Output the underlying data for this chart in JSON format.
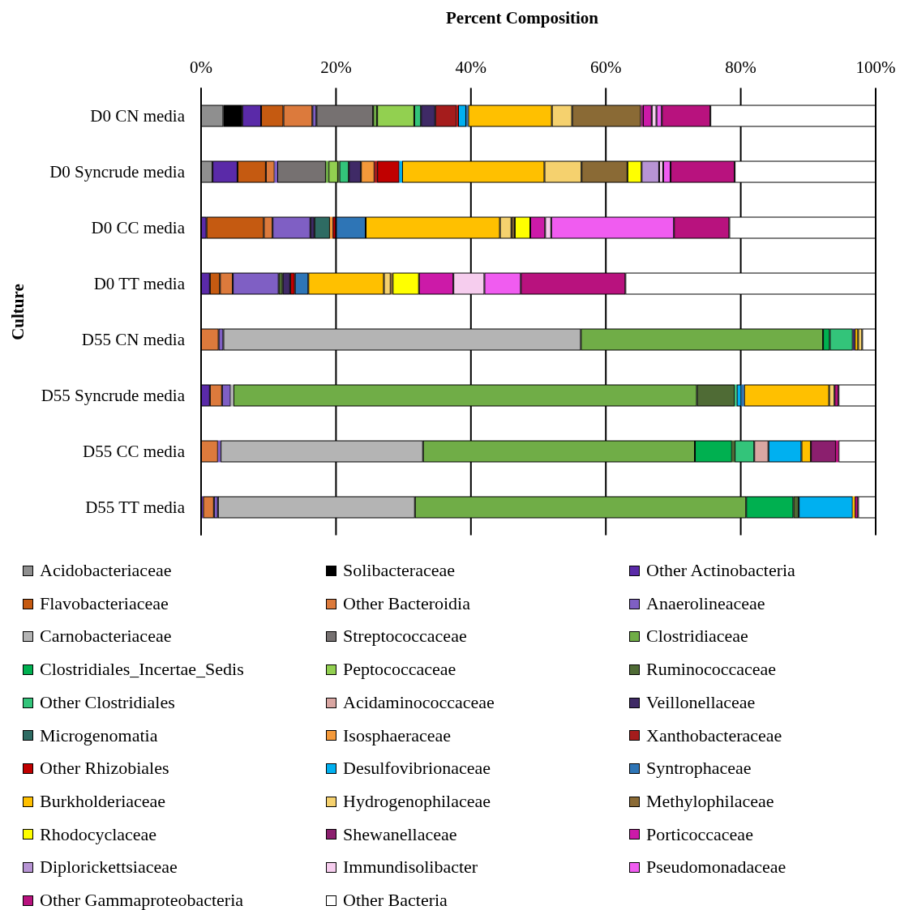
{
  "chart_data": {
    "type": "bar",
    "orientation": "horizontal",
    "stacked": true,
    "xlabel": "Percent Composition",
    "ylabel": "Culture",
    "categories": [
      "D0 CN media",
      "D0 Syncrude media",
      "D0 CC media",
      "D0 TT media",
      "D55 CN media",
      "D55 Syncrude media",
      "D55 CC media",
      "D55 TT media"
    ],
    "xlim": [
      0,
      100
    ],
    "xticks": [
      {
        "value": 0,
        "label": "0%"
      },
      {
        "value": 20,
        "label": "20%"
      },
      {
        "value": 40,
        "label": "40%"
      },
      {
        "value": 60,
        "label": "60%"
      },
      {
        "value": 80,
        "label": "80%"
      },
      {
        "value": 100,
        "label": "100%"
      }
    ],
    "grid": "x",
    "legend": "bottom",
    "series": [
      {
        "name": "Acidobacteriaceae",
        "color": "#8f8f8f",
        "values": [
          3.3,
          1.7,
          0,
          0,
          0,
          0,
          0,
          0
        ]
      },
      {
        "name": "Solibacteraceae",
        "color": "#000000",
        "values": [
          2.8,
          0,
          0,
          0,
          0,
          0,
          0,
          0
        ]
      },
      {
        "name": "Other Actinobacteria",
        "color": "#5a2aa8",
        "values": [
          2.8,
          3.7,
          0.8,
          1.3,
          0,
          1.3,
          0,
          0.3
        ]
      },
      {
        "name": "Flavobacteriaceae",
        "color": "#c55a11",
        "values": [
          3.3,
          4.2,
          8.5,
          1.5,
          0,
          0,
          0,
          0
        ]
      },
      {
        "name": "Other Bacteroidia",
        "color": "#dc7a3c",
        "values": [
          4.3,
          1.3,
          1.3,
          1.9,
          2.6,
          1.8,
          2.5,
          1.6
        ]
      },
      {
        "name": "Anaerolineaceae",
        "color": "#7f5fc4",
        "values": [
          0.6,
          0.4,
          5.6,
          6.8,
          0.7,
          1.3,
          0.4,
          0.6
        ]
      },
      {
        "name": "Carnobacteriaceae",
        "color": "#b4b4b4",
        "values": [
          0,
          0,
          0,
          0,
          53.0,
          0.4,
          30.0,
          29.2
        ]
      },
      {
        "name": "Streptococcaceae",
        "color": "#767171",
        "values": [
          8.4,
          7.2,
          0,
          0,
          0,
          0,
          0,
          0
        ]
      },
      {
        "name": "Clostridiaceae",
        "color": "#70ad47",
        "values": [
          0.6,
          0.4,
          0,
          0,
          35.9,
          68.7,
          40.3,
          49.1
        ]
      },
      {
        "name": "Clostridiales_Incertae_Sedis",
        "color": "#00b050",
        "values": [
          0,
          0,
          0,
          0,
          1.0,
          0,
          5.5,
          7.0
        ]
      },
      {
        "name": "Peptococcaceae",
        "color": "#92d050",
        "values": [
          5.5,
          1.4,
          0,
          0,
          0,
          0,
          0,
          0
        ]
      },
      {
        "name": "Ruminococcaceae",
        "color": "#4f6b35",
        "values": [
          0,
          0.2,
          0,
          0.6,
          0,
          5.6,
          0.4,
          0.8
        ]
      },
      {
        "name": "Other Clostridiales",
        "color": "#33c47a",
        "values": [
          1.0,
          1.4,
          0,
          0,
          3.4,
          0.3,
          2.9,
          0
        ]
      },
      {
        "name": "Acidaminococcaceae",
        "color": "#d9a6a2",
        "values": [
          0,
          0,
          0,
          0,
          0,
          0,
          2.1,
          0
        ]
      },
      {
        "name": "Veillonellaceae",
        "color": "#3f2a66",
        "values": [
          2.1,
          1.8,
          0.6,
          1.1,
          0.3,
          0,
          0,
          0
        ]
      },
      {
        "name": "Microgenomatia",
        "color": "#2e6b63",
        "values": [
          0,
          0,
          2.3,
          0,
          0,
          0,
          0,
          0
        ]
      },
      {
        "name": "Isosphaeraceae",
        "color": "#f4993a",
        "values": [
          0,
          2.0,
          0.4,
          0,
          0,
          0,
          0,
          0
        ]
      },
      {
        "name": "Xanthobacteraceae",
        "color": "#a51c1c",
        "values": [
          3.2,
          0.4,
          0,
          0,
          0,
          0,
          0,
          0
        ]
      },
      {
        "name": "Other Rhizobiales",
        "color": "#c00000",
        "values": [
          0.2,
          3.3,
          0.5,
          0.7,
          0,
          0,
          0,
          0
        ]
      },
      {
        "name": "Desulfovibrionaceae",
        "color": "#00b0f0",
        "values": [
          1.2,
          0.4,
          0,
          0,
          0,
          0.7,
          4.9,
          8.0
        ]
      },
      {
        "name": "Syntrophaceae",
        "color": "#2e75b6",
        "values": [
          0.3,
          0,
          4.4,
          2.0,
          0,
          0.4,
          0,
          0
        ]
      },
      {
        "name": "Burkholderiaceae",
        "color": "#ffc000",
        "values": [
          12.4,
          21.1,
          19.9,
          11.2,
          0.5,
          12.6,
          1.4,
          0.3
        ]
      },
      {
        "name": "Hydrogenophilaceae",
        "color": "#f5d16e",
        "values": [
          3.0,
          5.5,
          1.7,
          1.0,
          0.6,
          0.8,
          0,
          0
        ]
      },
      {
        "name": "Methylophilaceae",
        "color": "#8a6a35",
        "values": [
          10.2,
          6.8,
          0.5,
          0.3,
          0,
          0,
          0,
          0
        ]
      },
      {
        "name": "Rhodocyclaceae",
        "color": "#ffff00",
        "values": [
          0,
          2.1,
          2.3,
          3.9,
          0,
          0,
          0,
          0
        ]
      },
      {
        "name": "Shewanellaceae",
        "color": "#8b1f6e",
        "values": [
          0.3,
          0,
          0,
          0,
          0,
          0,
          3.7,
          0
        ]
      },
      {
        "name": "Porticoccaceae",
        "color": "#cc1aa8",
        "values": [
          1.3,
          0,
          2.2,
          5.1,
          0,
          0,
          0,
          0
        ]
      },
      {
        "name": "Diplorickettsiaceae",
        "color": "#b794d4",
        "values": [
          0,
          2.6,
          0,
          0,
          0,
          0,
          0,
          0
        ]
      },
      {
        "name": "Immundisolibacter",
        "color": "#f6cdee",
        "values": [
          0.7,
          0.6,
          0.9,
          4.6,
          0,
          0,
          0,
          0
        ]
      },
      {
        "name": "Pseudomonadaceae",
        "color": "#f05cf0",
        "values": [
          0.8,
          1.1,
          18.2,
          5.4,
          0,
          0,
          0,
          0
        ]
      },
      {
        "name": "Other Gammaproteobacteria",
        "color": "#b8127e",
        "values": [
          7.2,
          9.5,
          8.2,
          15.5,
          0,
          0.6,
          0.4,
          0.5
        ]
      },
      {
        "name": "Other Bacteria",
        "color": "#ffffff",
        "values": [
          24.5,
          20.9,
          21.7,
          37.1,
          2.0,
          5.5,
          5.5,
          2.6
        ]
      }
    ]
  }
}
